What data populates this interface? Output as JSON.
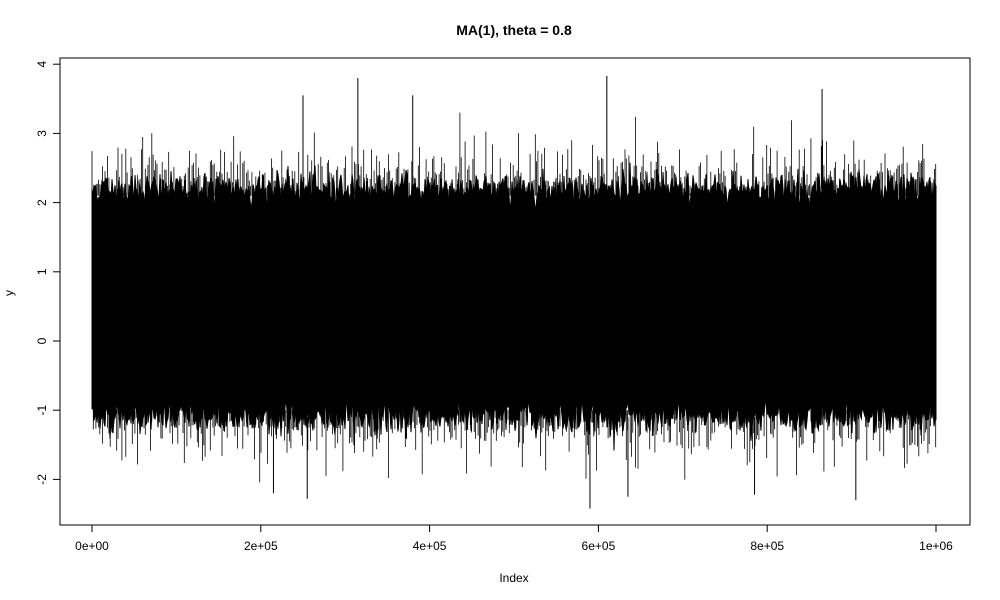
{
  "chart_data": {
    "type": "line",
    "title": "MA(1), theta = 0.8",
    "xlabel": "Index",
    "ylabel": "y",
    "xlim": [
      0,
      1000000
    ],
    "ylim": [
      -2.5,
      4.1
    ],
    "grid": false,
    "legend": "none",
    "n_observations": 1000000,
    "x_ticks": [
      {
        "value": 0,
        "label": "0e+00"
      },
      {
        "value": 200000,
        "label": "2e+05"
      },
      {
        "value": 400000,
        "label": "4e+05"
      },
      {
        "value": 600000,
        "label": "6e+05"
      },
      {
        "value": 800000,
        "label": "8e+05"
      },
      {
        "value": 1000000,
        "label": "1e+06"
      }
    ],
    "y_ticks": [
      {
        "value": -2,
        "label": "-2"
      },
      {
        "value": -1,
        "label": "-1"
      },
      {
        "value": 0,
        "label": "0"
      },
      {
        "value": 1,
        "label": "1"
      },
      {
        "value": 2,
        "label": "2"
      },
      {
        "value": 3,
        "label": "3"
      },
      {
        "value": 4,
        "label": "4"
      }
    ],
    "series": [
      {
        "color": "#000000",
        "band": {
          "lower": -1.1,
          "upper": 2.2
        },
        "typical_extremes": {
          "min": -1.8,
          "max": 3.0
        },
        "notable_points": [
          {
            "x": 315000,
            "y": 3.8
          },
          {
            "x": 610000,
            "y": 3.83
          },
          {
            "x": 865000,
            "y": 3.64
          },
          {
            "x": 250000,
            "y": 3.55
          },
          {
            "x": 380000,
            "y": 3.55
          },
          {
            "x": 590000,
            "y": -2.42
          },
          {
            "x": 905000,
            "y": -2.3
          },
          {
            "x": 255000,
            "y": -2.28
          },
          {
            "x": 215000,
            "y": -2.2
          },
          {
            "x": 635000,
            "y": -2.25
          },
          {
            "x": 785000,
            "y": -2.22
          }
        ]
      }
    ]
  }
}
